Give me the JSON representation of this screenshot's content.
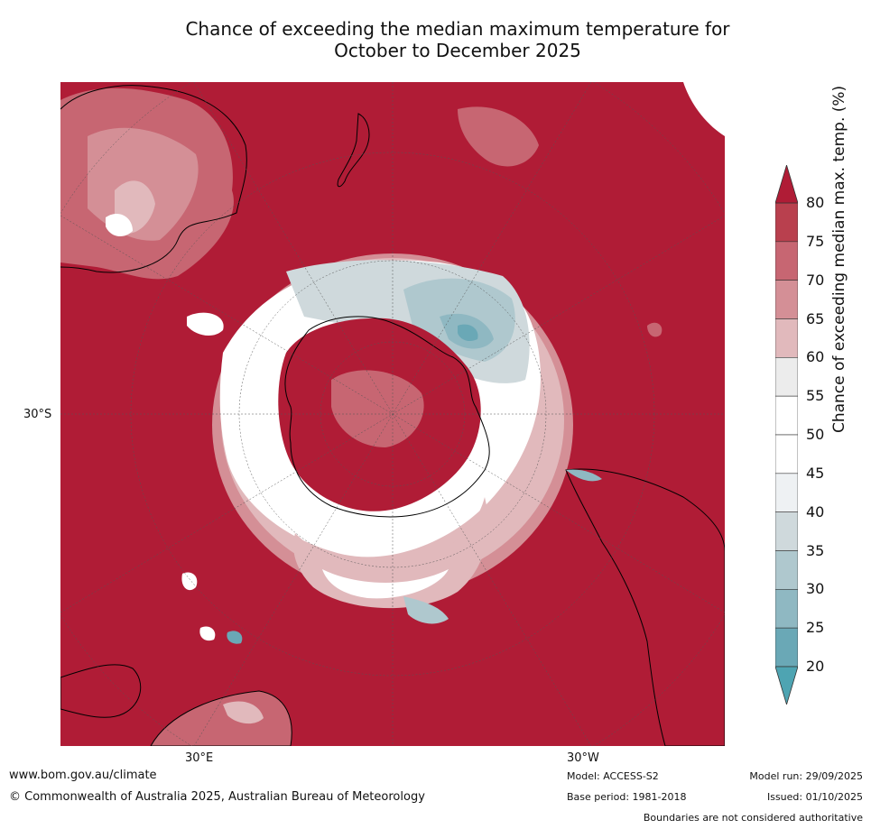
{
  "title": {
    "line1": "Chance of exceeding the median maximum temperature for",
    "line2": "October to December 2025"
  },
  "map": {
    "lat_label": "30°S",
    "lon_label_left": "30°E",
    "lon_label_right": "30°W",
    "colors": {
      "c80": "#b01c36",
      "c75": "#b9404e",
      "c70": "#c76672",
      "c65": "#d48f96",
      "c60": "#e1b9bc",
      "c55": "#ececec",
      "c50": "#ffffff",
      "c45": "#eef1f3",
      "c40": "#cfd9dc",
      "c35": "#afc8ce",
      "c30": "#8fb8c2",
      "c25": "#6aa8b6",
      "c20": "#4ea4b2"
    }
  },
  "colorbar": {
    "label": "Chance of exceeding median max. temp. (%)",
    "ticks": [
      "80",
      "75",
      "70",
      "65",
      "60",
      "55",
      "50",
      "45",
      "40",
      "35",
      "30",
      "25",
      "20"
    ],
    "colors": [
      "#b9404e",
      "#c76672",
      "#d48f96",
      "#e1b9bc",
      "#ececec",
      "#ffffff",
      "#ffffff",
      "#eef1f3",
      "#cfd9dc",
      "#afc8ce",
      "#8fb8c2",
      "#6aa8b6"
    ],
    "top_color": "#b01c36",
    "bottom_color": "#4ea4b2"
  },
  "footer": {
    "url": "www.bom.gov.au/climate",
    "copyright": "© Commonwealth of Australia 2025, Australian Bureau of Meteorology",
    "model": "Model: ACCESS-S2",
    "base_period": "Base period: 1981-2018",
    "model_run": "Model run: 29/09/2025",
    "issued": "Issued: 01/10/2025",
    "disclaimer": "Boundaries are not considered authoritative"
  }
}
